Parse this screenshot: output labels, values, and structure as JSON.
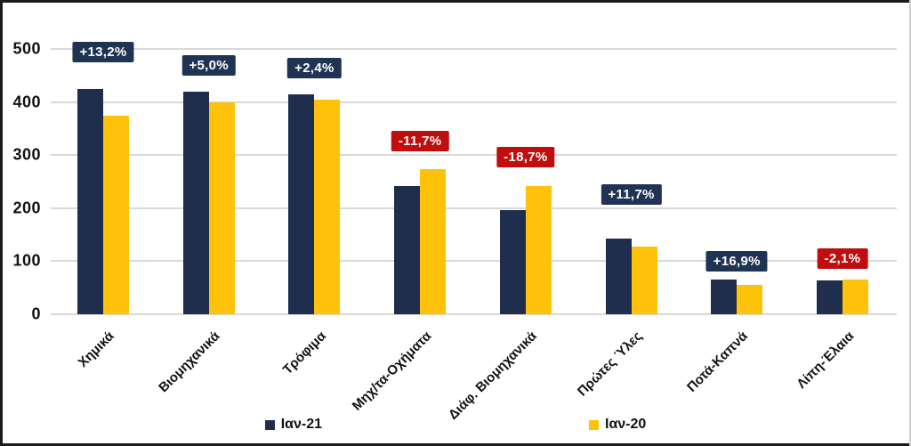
{
  "chart_data": {
    "type": "bar",
    "title": "",
    "xlabel": "",
    "ylabel": "",
    "categories": [
      "Χημικά",
      "Βιομηχανικά",
      "Τρόφιμα",
      "Μηχ/τα-Οχήματα",
      "Διάφ. Βιομηχανικά",
      "Πρώτες Ύλες",
      "Ποτά-Καπνά",
      "Λίπη-Έλαια"
    ],
    "series": [
      {
        "name": "Ιαν-21",
        "color": "#1F2E4D",
        "values": [
          425,
          420,
          415,
          241,
          196,
          143,
          65,
          64
        ]
      },
      {
        "name": "Ιαν-20",
        "color": "#FFC20A",
        "values": [
          375,
          400,
          405,
          273,
          241,
          128,
          56,
          66
        ]
      }
    ],
    "change_labels": [
      {
        "text": "+13,2%",
        "trend": "up"
      },
      {
        "text": "+5,0%",
        "trend": "up"
      },
      {
        "text": "+2,4%",
        "trend": "up"
      },
      {
        "text": "-11,7%",
        "trend": "down"
      },
      {
        "text": "-18,7%",
        "trend": "down"
      },
      {
        "text": "+11,7%",
        "trend": "up"
      },
      {
        "text": "+16,9%",
        "trend": "up"
      },
      {
        "text": "-2,1%",
        "trend": "down"
      }
    ],
    "yticks": [
      0,
      100,
      200,
      300,
      400,
      500
    ],
    "ylim": [
      0,
      500
    ],
    "grid": true,
    "legend_position": "bottom",
    "colors": {
      "positive_label_bg": "#1F3353",
      "negative_label_bg": "#C00D0D",
      "label_text": "#FFFFFF",
      "gridline": "#D9D9D9",
      "axis_text": "#111111"
    }
  }
}
